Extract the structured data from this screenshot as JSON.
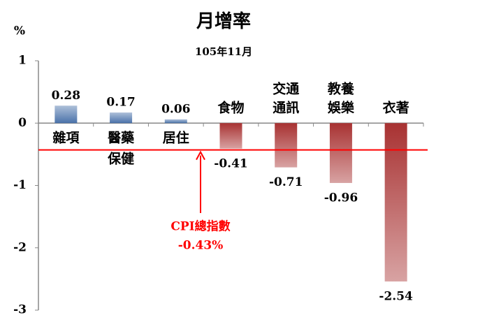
{
  "chart_data": {
    "type": "bar",
    "title": "月增率",
    "subtitle": "105年11月",
    "y_unit": "%",
    "categories": [
      [
        "雜項"
      ],
      [
        "醫藥",
        "保健"
      ],
      [
        "居住"
      ],
      [
        "食物"
      ],
      [
        "交通",
        "通訊"
      ],
      [
        "教養",
        "娛樂"
      ],
      [
        "衣著"
      ]
    ],
    "values": [
      0.28,
      0.17,
      0.06,
      -0.41,
      -0.71,
      -0.96,
      -2.54
    ],
    "positive_color": "#4a72aa",
    "negative_color": "#a83232",
    "ylim": [
      -3,
      1
    ],
    "yticks": [
      1,
      0,
      -1,
      -2,
      -3
    ],
    "reference": {
      "name": "CPI總指數",
      "value": -0.43,
      "label": "-0.43%",
      "color": "#ff0000"
    }
  }
}
